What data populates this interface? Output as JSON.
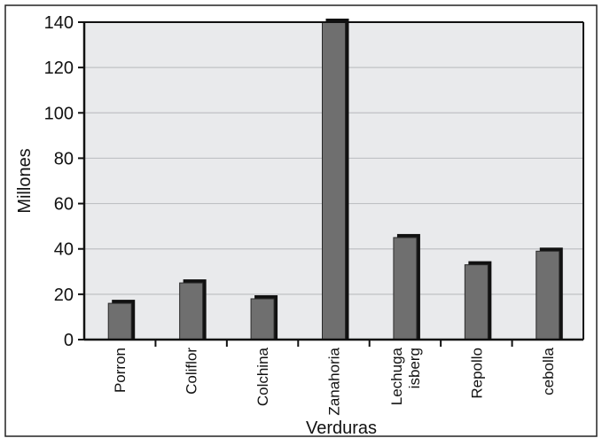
{
  "chart_data": {
    "type": "bar",
    "categories": [
      [
        "Porron"
      ],
      [
        "Coliflor"
      ],
      [
        "Colchina"
      ],
      [
        "Zanahoria"
      ],
      [
        "Lechuga",
        "isberg"
      ],
      [
        "Repollo"
      ],
      [
        "cebolla"
      ]
    ],
    "values": [
      16,
      25,
      18,
      140,
      45,
      33,
      39
    ],
    "xlabel": "Verduras",
    "ylabel": "Millones",
    "ylim": [
      0,
      140
    ],
    "yticks": [
      "0",
      "20",
      "40",
      "60",
      "80",
      "100",
      "120",
      "140"
    ],
    "grid": true,
    "legend": "none",
    "colors": {
      "bar": "#6f6f6f",
      "bar_shadow": "#111111",
      "plot_background": "#e9eaec",
      "grid": "#bfc1c4"
    }
  }
}
